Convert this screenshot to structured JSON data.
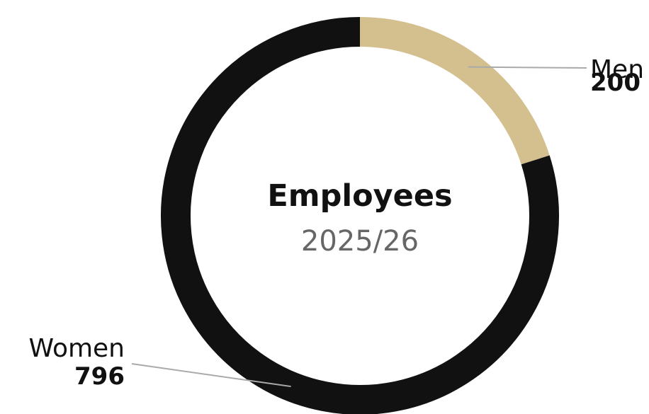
{
  "chart_data": {
    "type": "pie",
    "title": "Employees",
    "subtitle": "2025/26",
    "slices": [
      {
        "label": "Men",
        "value": 200,
        "color": "#d4c08e"
      },
      {
        "label": "Women",
        "value": 796,
        "color": "#111111"
      }
    ],
    "legend": "none"
  }
}
